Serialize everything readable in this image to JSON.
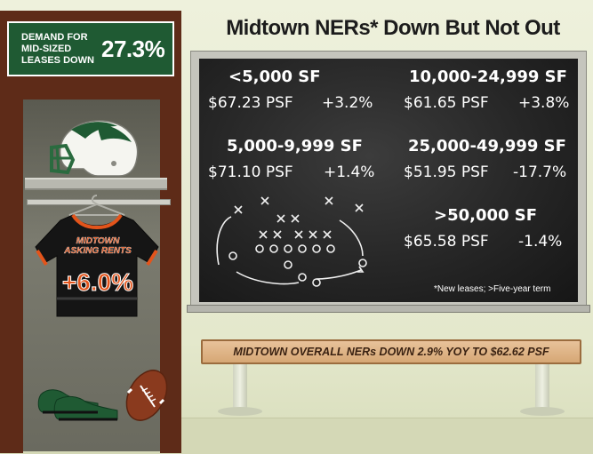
{
  "title": "Midtown NERs* Down But Not Out",
  "demand": {
    "label": "DEMAND FOR MID-SIZED LEASES DOWN",
    "value": "27.3%"
  },
  "jersey": {
    "line1": "MIDTOWN",
    "line2": "ASKING RENTS",
    "value": "+6.0%"
  },
  "board": {
    "cells": [
      {
        "size": "<5,000 SF",
        "rent": "$67.23 PSF",
        "change": "+3.2%"
      },
      {
        "size": "10,000-24,999 SF",
        "rent": "$61.65 PSF",
        "change": "+3.8%"
      },
      {
        "size": "5,000-9,999 SF",
        "rent": "$71.10 PSF",
        "change": "+1.4%"
      },
      {
        "size": "25,000-49,999 SF",
        "rent": "$51.95 PSF",
        "change": "-17.7%"
      },
      {
        "size": ">50,000 SF",
        "rent": "$65.58 PSF",
        "change": "-1.4%"
      }
    ],
    "footnote": "*New leases; >Five-year term"
  },
  "bench": {
    "text": "MIDTOWN OVERALL NERs DOWN 2.9% YOY TO $62.62 PSF"
  },
  "colors": {
    "green": "#1f5a33",
    "orange": "#e3541b",
    "locker": "#5e2b18",
    "chalkboard": "#2a2a2a"
  }
}
